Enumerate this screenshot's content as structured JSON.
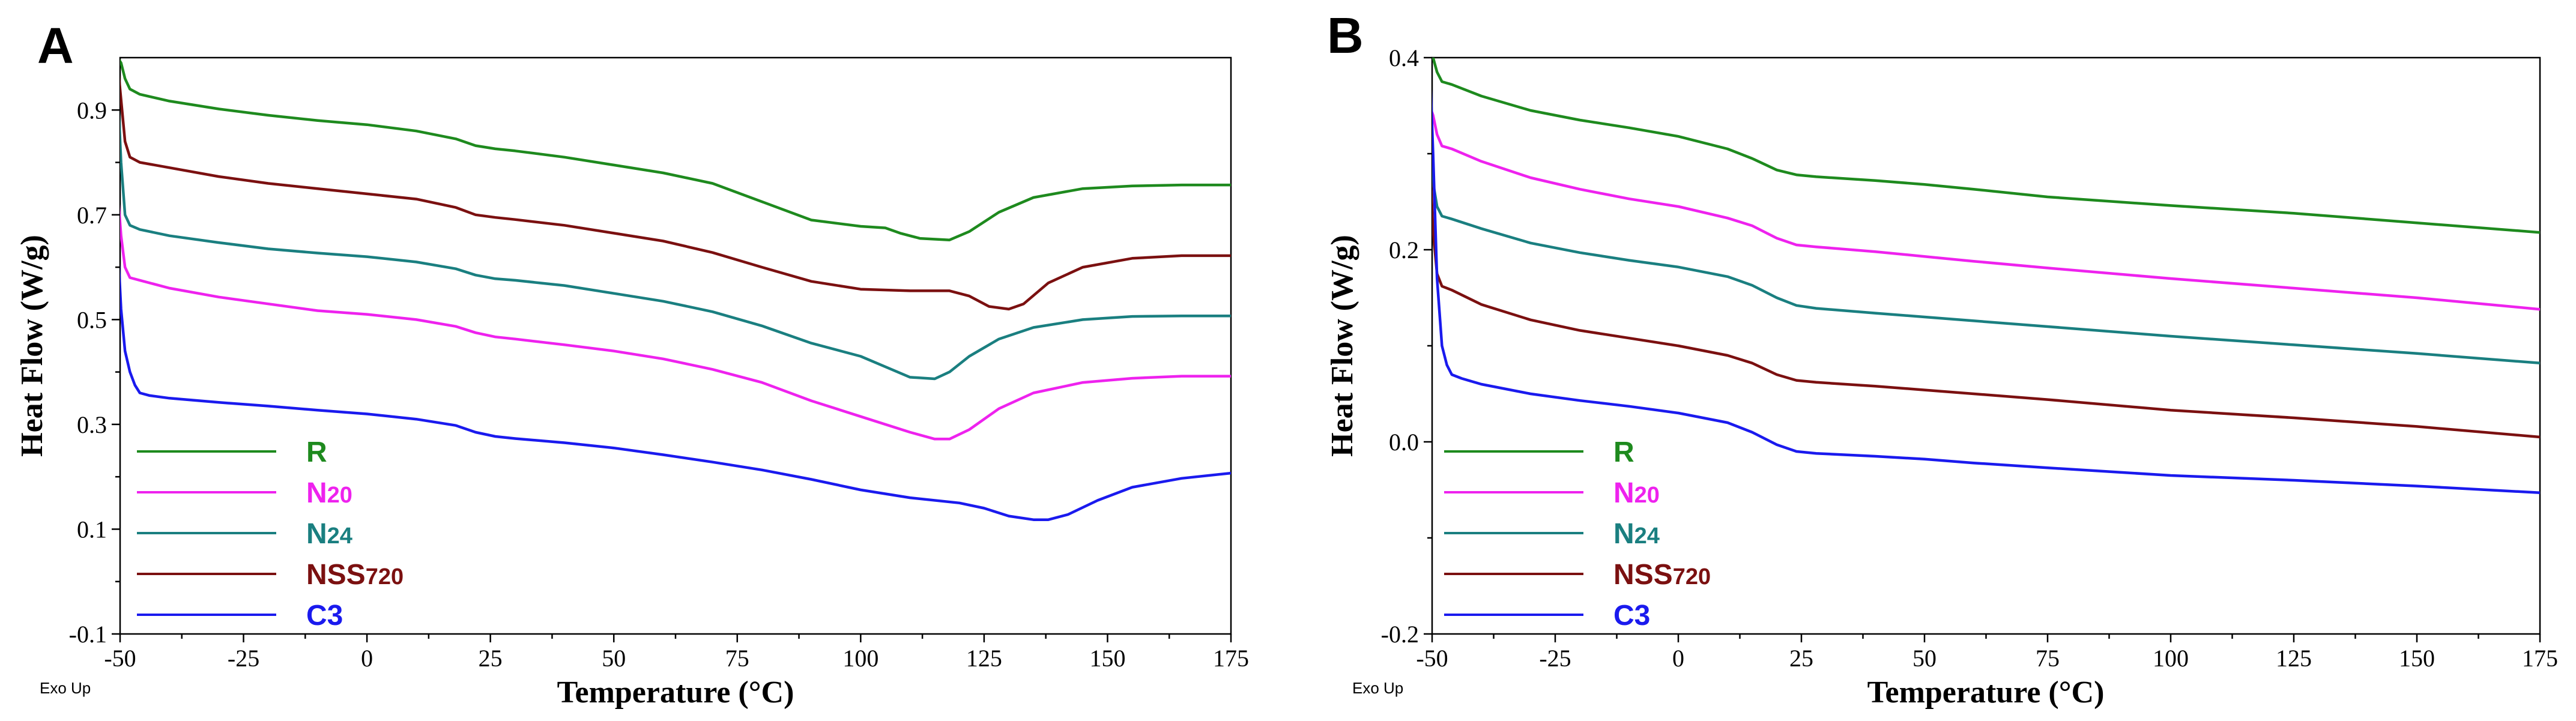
{
  "chart_data": [
    {
      "type": "line",
      "panel_label": "A",
      "xlabel": "Temperature (°C)",
      "ylabel": "Heat Flow (W/g)",
      "corner_note": "Exo Up",
      "xlim": [
        -50,
        175
      ],
      "ylim": [
        -0.1,
        1.0
      ],
      "xticks": [
        -50,
        -25,
        0,
        25,
        50,
        75,
        100,
        125,
        150,
        175
      ],
      "xtick_labels": [
        "-50",
        "-25",
        "0",
        "25",
        "50",
        "75",
        "100",
        "125",
        "150",
        "175"
      ],
      "yticks": [
        -0.1,
        0.1,
        0.3,
        0.5,
        0.7,
        0.9
      ],
      "ytick_labels": [
        "-0.1",
        "0.1",
        "0.3",
        "0.5",
        "0.7",
        "0.9"
      ],
      "legend_position": "bottom-left",
      "series": [
        {
          "name": "R",
          "label_main": "R",
          "label_sub": "",
          "color": "#1e8a1e",
          "x": [
            -50.5,
            -49.8,
            -49,
            -48,
            -46,
            -40,
            -30,
            -20,
            -10,
            0,
            10,
            18,
            22,
            26,
            30,
            40,
            50,
            60,
            70,
            80,
            90,
            100,
            105,
            108,
            112,
            118,
            122,
            128,
            135,
            145,
            155,
            165,
            175
          ],
          "y": [
            1.0,
            0.99,
            0.96,
            0.94,
            0.93,
            0.917,
            0.902,
            0.89,
            0.88,
            0.872,
            0.86,
            0.845,
            0.832,
            0.826,
            0.822,
            0.81,
            0.795,
            0.78,
            0.76,
            0.725,
            0.69,
            0.678,
            0.675,
            0.665,
            0.655,
            0.652,
            0.668,
            0.705,
            0.733,
            0.75,
            0.755,
            0.757,
            0.757
          ]
        },
        {
          "name": "NSS720",
          "label_main": "NSS",
          "label_sub": "720",
          "color": "#7b1010",
          "x": [
            -50.5,
            -49.8,
            -49,
            -48,
            -46,
            -40,
            -30,
            -20,
            -10,
            0,
            10,
            18,
            22,
            26,
            30,
            40,
            50,
            60,
            70,
            80,
            90,
            100,
            110,
            118,
            122,
            126,
            130,
            133,
            138,
            145,
            155,
            165,
            175
          ],
          "y": [
            0.99,
            0.92,
            0.84,
            0.81,
            0.8,
            0.79,
            0.773,
            0.76,
            0.75,
            0.74,
            0.73,
            0.714,
            0.7,
            0.695,
            0.691,
            0.68,
            0.665,
            0.65,
            0.628,
            0.6,
            0.573,
            0.558,
            0.555,
            0.555,
            0.545,
            0.525,
            0.52,
            0.53,
            0.57,
            0.6,
            0.617,
            0.622,
            0.622
          ]
        },
        {
          "name": "N24",
          "label_main": "N",
          "label_sub": "24",
          "color": "#1a7f80",
          "x": [
            -50.5,
            -49.8,
            -49,
            -48,
            -46,
            -40,
            -30,
            -20,
            -10,
            0,
            10,
            18,
            22,
            26,
            30,
            40,
            50,
            60,
            70,
            80,
            90,
            100,
            105,
            110,
            115,
            118,
            122,
            128,
            135,
            145,
            155,
            165,
            175
          ],
          "y": [
            0.95,
            0.8,
            0.7,
            0.68,
            0.672,
            0.66,
            0.647,
            0.635,
            0.627,
            0.62,
            0.61,
            0.597,
            0.585,
            0.578,
            0.575,
            0.565,
            0.55,
            0.535,
            0.515,
            0.488,
            0.455,
            0.43,
            0.41,
            0.39,
            0.387,
            0.4,
            0.43,
            0.463,
            0.485,
            0.5,
            0.506,
            0.507,
            0.507
          ]
        },
        {
          "name": "N20",
          "label_main": "N",
          "label_sub": "20",
          "color": "#ee22ee",
          "x": [
            -50.5,
            -49.8,
            -49,
            -48,
            -46,
            -40,
            -30,
            -20,
            -10,
            0,
            10,
            18,
            22,
            26,
            30,
            40,
            50,
            60,
            70,
            80,
            90,
            100,
            110,
            115,
            118,
            122,
            128,
            135,
            145,
            155,
            165,
            175
          ],
          "y": [
            0.75,
            0.66,
            0.6,
            0.58,
            0.575,
            0.56,
            0.543,
            0.53,
            0.517,
            0.51,
            0.5,
            0.487,
            0.475,
            0.467,
            0.463,
            0.452,
            0.44,
            0.425,
            0.405,
            0.38,
            0.345,
            0.315,
            0.285,
            0.272,
            0.272,
            0.29,
            0.33,
            0.36,
            0.38,
            0.388,
            0.392,
            0.392
          ]
        },
        {
          "name": "C3",
          "label_main": "C3",
          "label_sub": "",
          "color": "#1a1aee",
          "x": [
            -50.5,
            -49.8,
            -49,
            -48,
            -47,
            -46,
            -44,
            -40,
            -30,
            -20,
            -10,
            0,
            10,
            18,
            22,
            26,
            30,
            40,
            50,
            60,
            70,
            80,
            90,
            100,
            110,
            120,
            125,
            130,
            135,
            138,
            142,
            148,
            155,
            165,
            175
          ],
          "y": [
            0.65,
            0.52,
            0.44,
            0.4,
            0.375,
            0.36,
            0.355,
            0.35,
            0.342,
            0.335,
            0.327,
            0.32,
            0.31,
            0.298,
            0.285,
            0.277,
            0.273,
            0.265,
            0.255,
            0.242,
            0.228,
            0.213,
            0.195,
            0.175,
            0.16,
            0.15,
            0.14,
            0.125,
            0.118,
            0.118,
            0.128,
            0.155,
            0.18,
            0.197,
            0.207
          ]
        }
      ],
      "legend_order": [
        "R",
        "N20",
        "N24",
        "NSS720",
        "C3"
      ]
    },
    {
      "type": "line",
      "panel_label": "B",
      "xlabel": "Temperature (°C)",
      "ylabel": "Heat Flow (W/g)",
      "corner_note": "Exo Up",
      "xlim": [
        -50,
        175
      ],
      "ylim": [
        -0.2,
        0.4
      ],
      "xticks": [
        -50,
        -25,
        0,
        25,
        50,
        75,
        100,
        125,
        150,
        175
      ],
      "xtick_labels": [
        "-50",
        "-25",
        "0",
        "25",
        "50",
        "75",
        "100",
        "125",
        "150",
        "175"
      ],
      "yticks": [
        -0.2,
        0.0,
        0.2,
        0.4
      ],
      "ytick_labels": [
        "-0.2",
        "0.0",
        "0.2",
        "0.4"
      ],
      "legend_position": "bottom-left",
      "series": [
        {
          "name": "R",
          "label_main": "R",
          "label_sub": "",
          "color": "#1e8a1e",
          "x": [
            -50.5,
            -49.8,
            -49,
            -48,
            -46,
            -40,
            -30,
            -20,
            -10,
            0,
            10,
            15,
            20,
            24,
            28,
            40,
            50,
            60,
            75,
            100,
            125,
            150,
            175
          ],
          "y": [
            0.42,
            0.4,
            0.385,
            0.375,
            0.372,
            0.36,
            0.345,
            0.335,
            0.327,
            0.318,
            0.305,
            0.295,
            0.283,
            0.278,
            0.276,
            0.272,
            0.268,
            0.263,
            0.255,
            0.246,
            0.238,
            0.228,
            0.218
          ]
        },
        {
          "name": "N20",
          "label_main": "N",
          "label_sub": "20",
          "color": "#ee22ee",
          "x": [
            -50.5,
            -49.8,
            -49,
            -48,
            -46,
            -40,
            -30,
            -20,
            -10,
            0,
            10,
            15,
            20,
            24,
            28,
            40,
            50,
            60,
            75,
            100,
            125,
            150,
            175
          ],
          "y": [
            0.35,
            0.34,
            0.32,
            0.308,
            0.305,
            0.292,
            0.275,
            0.263,
            0.253,
            0.245,
            0.233,
            0.225,
            0.212,
            0.205,
            0.203,
            0.198,
            0.193,
            0.188,
            0.181,
            0.17,
            0.16,
            0.15,
            0.138
          ]
        },
        {
          "name": "N24",
          "label_main": "N",
          "label_sub": "24",
          "color": "#1a7f80",
          "x": [
            -50.5,
            -49.8,
            -49,
            -48,
            -46,
            -40,
            -30,
            -20,
            -10,
            0,
            10,
            15,
            20,
            24,
            28,
            40,
            50,
            60,
            75,
            100,
            125,
            150,
            175
          ],
          "y": [
            0.32,
            0.27,
            0.245,
            0.235,
            0.232,
            0.222,
            0.207,
            0.197,
            0.189,
            0.182,
            0.172,
            0.163,
            0.15,
            0.142,
            0.139,
            0.134,
            0.13,
            0.126,
            0.12,
            0.11,
            0.101,
            0.092,
            0.082
          ]
        },
        {
          "name": "NSS720",
          "label_main": "NSS",
          "label_sub": "720",
          "color": "#7b1010",
          "x": [
            -50.5,
            -49.8,
            -49,
            -48,
            -46,
            -40,
            -30,
            -20,
            -10,
            0,
            10,
            15,
            20,
            24,
            28,
            40,
            50,
            60,
            75,
            100,
            125,
            150,
            175
          ],
          "y": [
            0.3,
            0.22,
            0.175,
            0.162,
            0.158,
            0.143,
            0.127,
            0.116,
            0.108,
            0.1,
            0.09,
            0.082,
            0.07,
            0.064,
            0.062,
            0.058,
            0.054,
            0.05,
            0.044,
            0.033,
            0.025,
            0.016,
            0.005
          ]
        },
        {
          "name": "C3",
          "label_main": "C3",
          "label_sub": "",
          "color": "#1a1aee",
          "x": [
            -50.5,
            -49.8,
            -49,
            -48,
            -47,
            -46,
            -44,
            -40,
            -30,
            -20,
            -10,
            0,
            10,
            15,
            20,
            24,
            28,
            40,
            50,
            60,
            75,
            100,
            125,
            150,
            175
          ],
          "y": [
            0.4,
            0.3,
            0.17,
            0.1,
            0.08,
            0.07,
            0.066,
            0.06,
            0.05,
            0.043,
            0.037,
            0.03,
            0.02,
            0.01,
            -0.003,
            -0.01,
            -0.012,
            -0.015,
            -0.018,
            -0.022,
            -0.027,
            -0.035,
            -0.04,
            -0.046,
            -0.053
          ]
        }
      ],
      "legend_order": [
        "R",
        "N20",
        "N24",
        "NSS720",
        "C3"
      ]
    }
  ]
}
